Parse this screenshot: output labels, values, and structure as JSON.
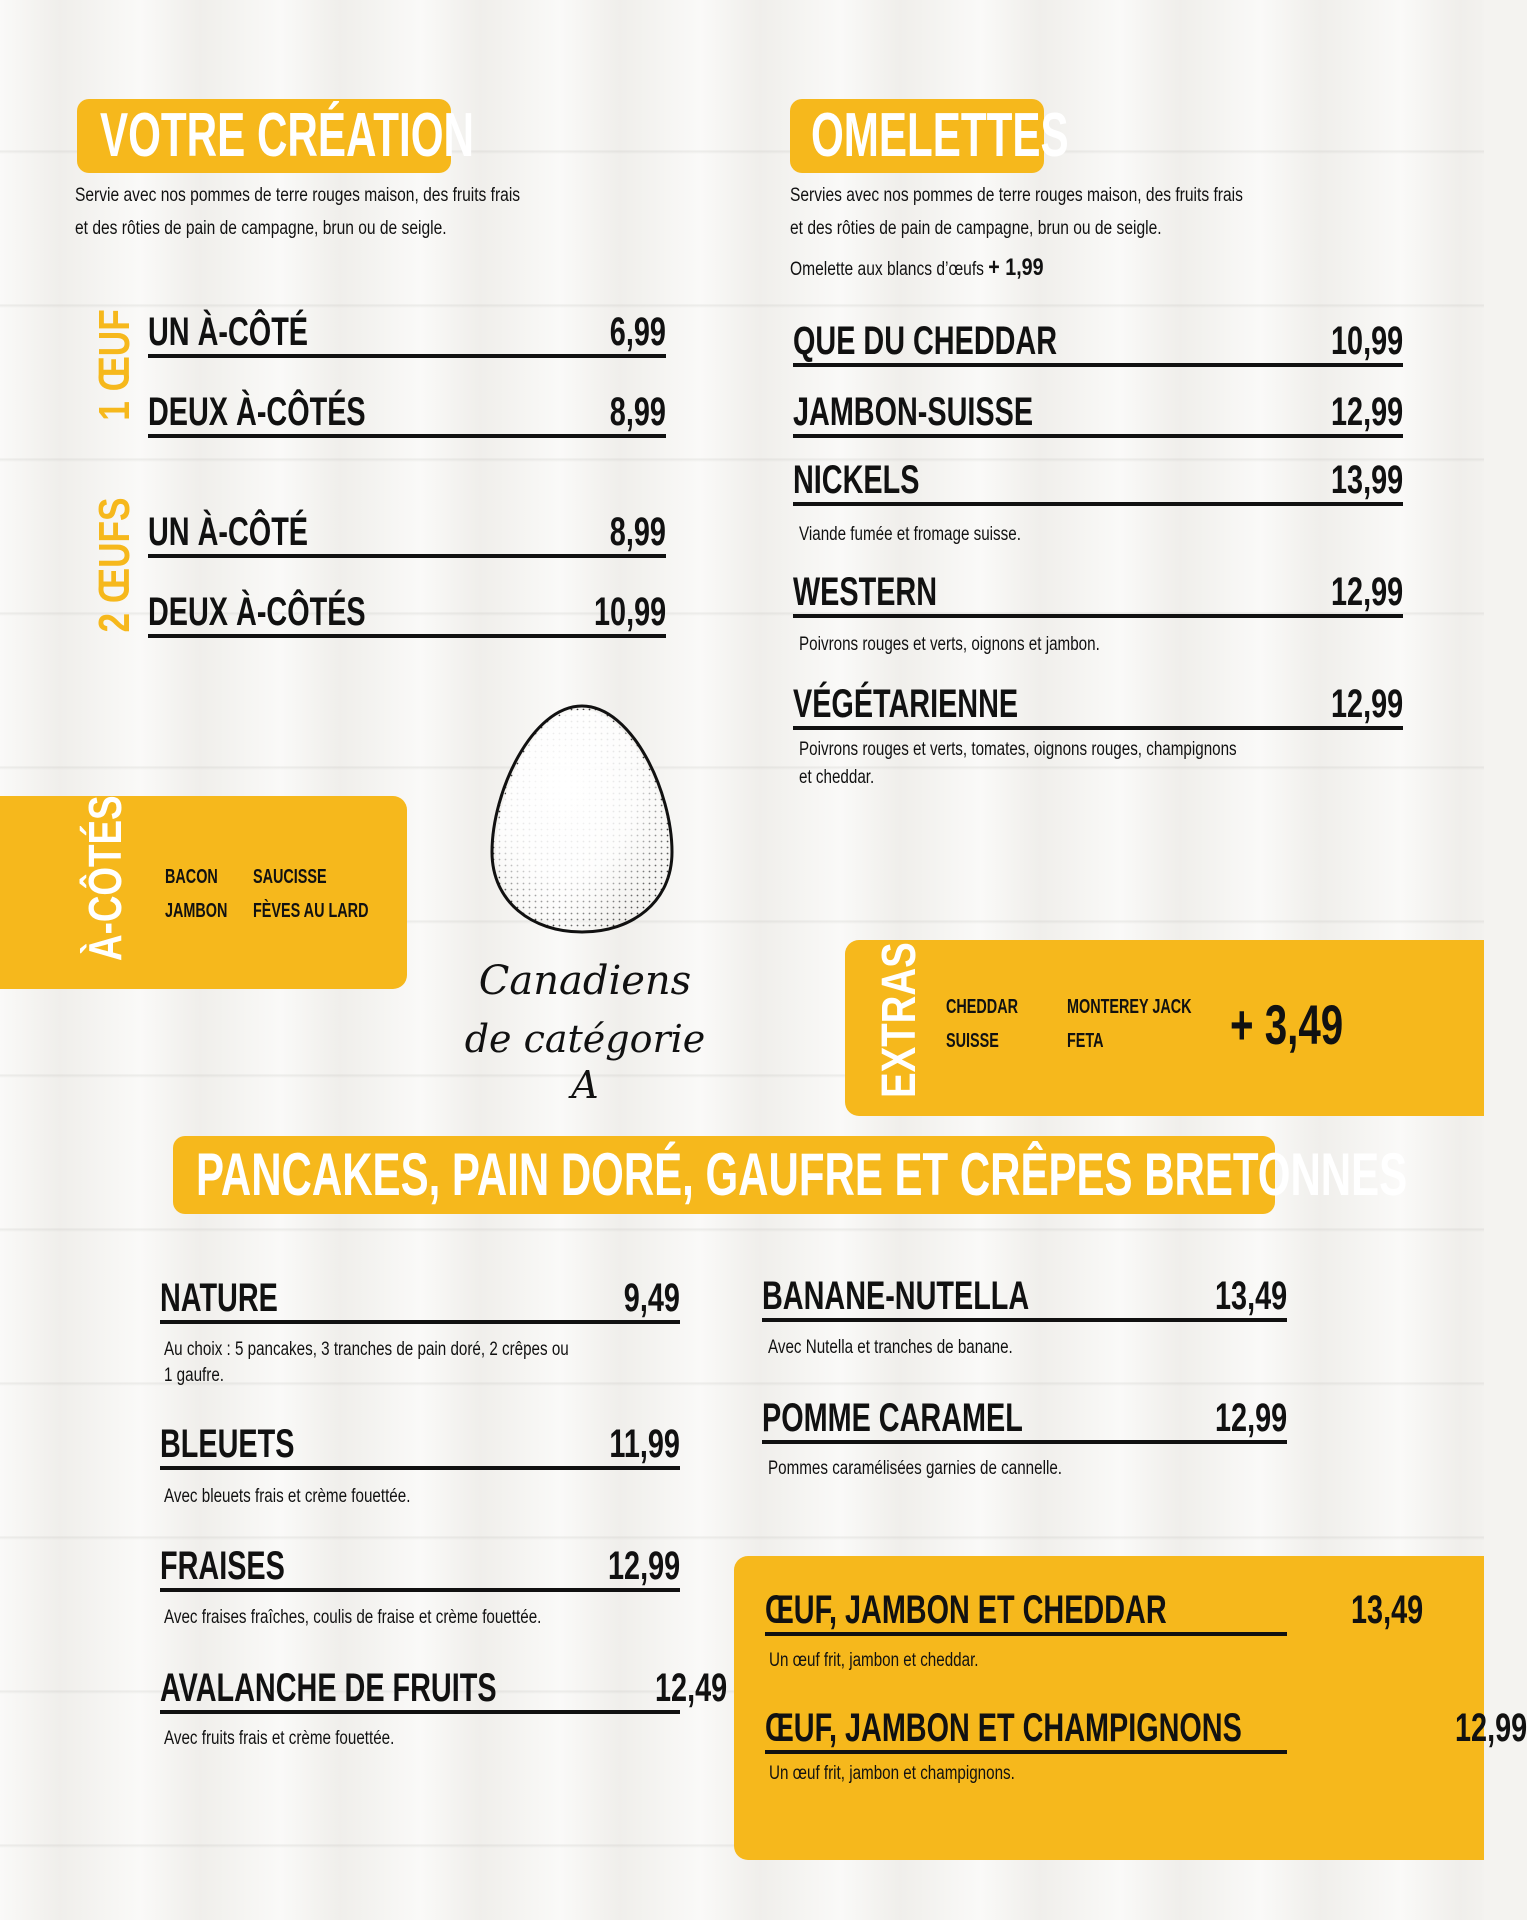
{
  "creation": {
    "title": "VOTRE CRÉATION",
    "desc1": "Servie avec nos pommes de terre rouges maison, des fruits frais",
    "desc2": "et des rôties de pain de campagne, brun ou de seigle.",
    "group1_label": "1 ŒUF",
    "group2_label": "2 ŒUFS",
    "items": [
      {
        "name": "UN À-CÔTÉ",
        "price": "6,99"
      },
      {
        "name": "DEUX À-CÔTÉS",
        "price": "8,99"
      },
      {
        "name": "UN À-CÔTÉ",
        "price": "8,99"
      },
      {
        "name": "DEUX À-CÔTÉS",
        "price": "10,99"
      }
    ]
  },
  "sides": {
    "title": "À-CÔTÉS",
    "col1": [
      "BACON",
      "JAMBON"
    ],
    "col2": [
      "SAUCISSE",
      "FÈVES AU LARD"
    ]
  },
  "egg": {
    "caption1": "Canadiens",
    "caption2": "de catégorie A"
  },
  "omelettes": {
    "title": "OMELETTES",
    "desc1": "Servies avec nos pommes de terre rouges maison, des fruits frais",
    "desc2": "et des rôties de pain de campagne, brun ou de seigle.",
    "whites_label": "Omelette aux blancs d’œufs",
    "whites_price": "+ 1,99",
    "items": [
      {
        "name": "QUE DU CHEDDAR",
        "price": "10,99",
        "desc": ""
      },
      {
        "name": "JAMBON-SUISSE",
        "price": "12,99",
        "desc": ""
      },
      {
        "name": "NICKELS",
        "price": "13,99",
        "desc": "Viande fumée et fromage suisse."
      },
      {
        "name": "WESTERN",
        "price": "12,99",
        "desc": "Poivrons rouges et verts, oignons et jambon."
      },
      {
        "name": "VÉGÉTARIENNE",
        "price": "12,99",
        "desc": "Poivrons rouges et verts, tomates, oignons rouges, champignons",
        "desc2": "et cheddar."
      }
    ]
  },
  "extras": {
    "title": "EXTRAS",
    "col1": [
      "CHEDDAR",
      "SUISSE"
    ],
    "col2": [
      "MONTEREY JACK",
      "FETA"
    ],
    "price": "+ 3,49"
  },
  "pancakes": {
    "title": "PANCAKES, PAIN DORÉ, GAUFRE ET CRÊPES BRETONNES",
    "left": [
      {
        "name": "NATURE",
        "price": "9,49",
        "desc": "Au choix : 5 pancakes, 3 tranches de pain doré, 2 crêpes ou",
        "desc2": "1 gaufre."
      },
      {
        "name": "BLEUETS",
        "price": "11,99",
        "desc": "Avec bleuets frais et crème fouettée."
      },
      {
        "name": "FRAISES",
        "price": "12,99",
        "desc": "Avec fraises fraîches, coulis de fraise et crème fouettée."
      },
      {
        "name": "AVALANCHE DE FRUITS",
        "price": "12,49",
        "desc": "Avec fruits frais et crème fouettée."
      }
    ],
    "right": [
      {
        "name": "BANANE-NUTELLA",
        "price": "13,49",
        "desc": "Avec Nutella et tranches de banane."
      },
      {
        "name": "POMME CARAMEL",
        "price": "12,99",
        "desc": "Pommes caramélisées garnies de cannelle."
      }
    ],
    "savory": [
      {
        "name": "ŒUF, JAMBON ET CHEDDAR",
        "price": "13,49",
        "desc": "Un œuf frit, jambon et cheddar."
      },
      {
        "name": "ŒUF, JAMBON ET CHAMPIGNONS",
        "price": "12,99",
        "desc": "Un œuf frit, jambon et champignons."
      }
    ]
  },
  "colors": {
    "accent": "#f6b81c",
    "text": "#111111",
    "background": "#f4f3f0"
  }
}
